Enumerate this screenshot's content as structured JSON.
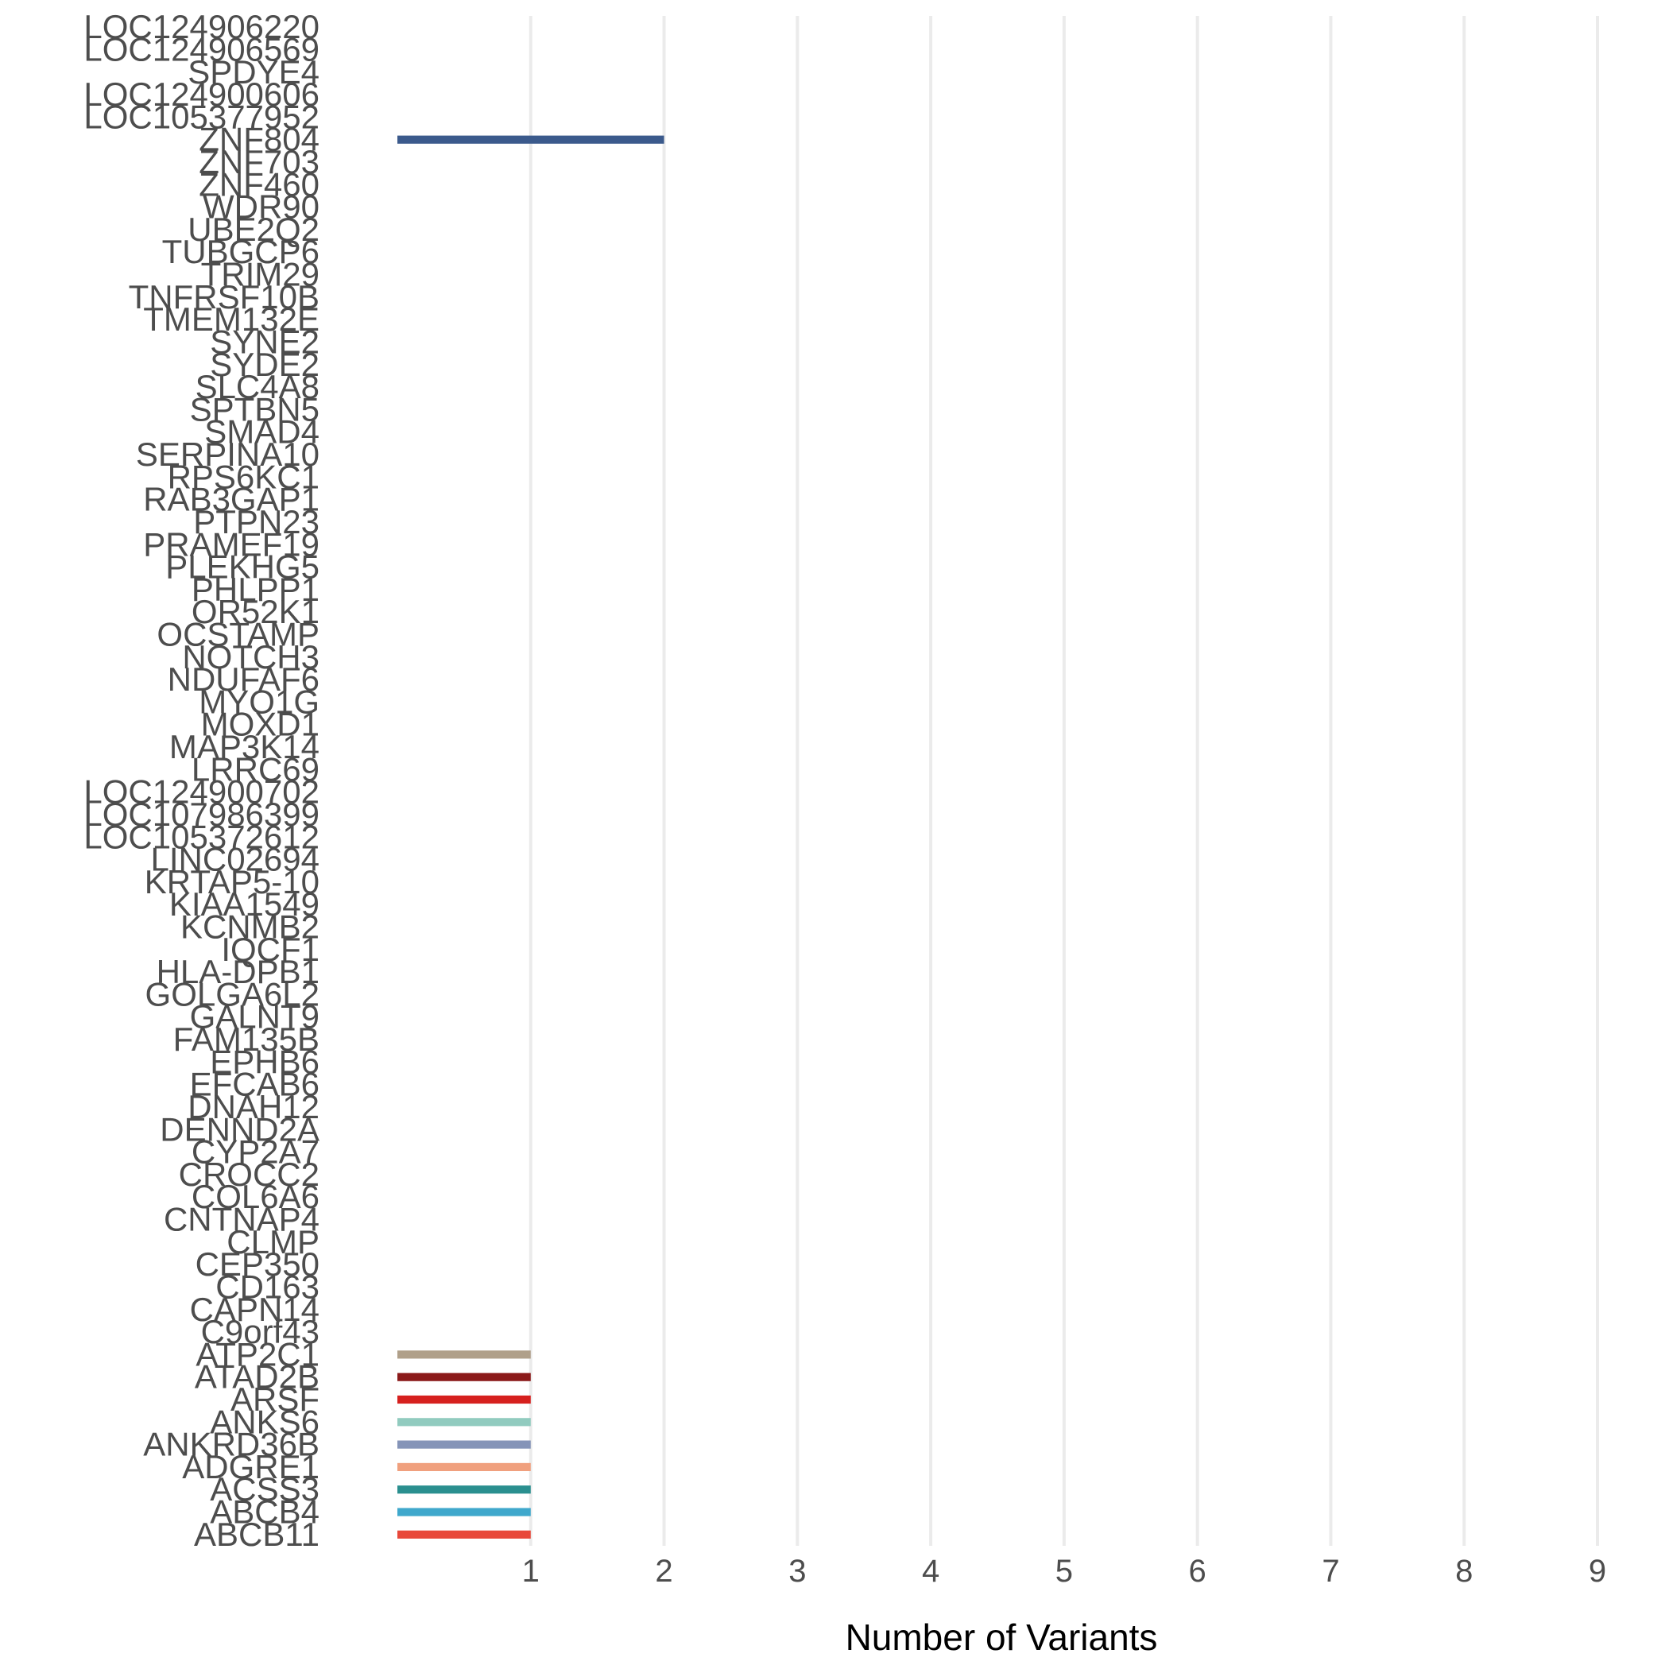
{
  "chart_data": {
    "type": "bar",
    "orientation": "horizontal",
    "xlabel": "Number of Variants",
    "ylabel": "",
    "xlim": [
      0,
      9
    ],
    "x_ticks": [
      "1",
      "2",
      "3",
      "4",
      "5",
      "6",
      "7",
      "8",
      "9"
    ],
    "grid": "vertical major lines",
    "legend": "none",
    "bars": [
      {
        "gene": "LOC124906220",
        "value": 0,
        "color": "#3b5a8c"
      },
      {
        "gene": "LOC124906569",
        "value": 0,
        "color": "#3b5a8c"
      },
      {
        "gene": "SPDYE4",
        "value": 0,
        "color": "#3b5a8c"
      },
      {
        "gene": "LOC124900606",
        "value": 0,
        "color": "#3b5a8c"
      },
      {
        "gene": "LOC105377952",
        "value": 0,
        "color": "#3b5a8c"
      },
      {
        "gene": "ZNF804",
        "value": 2,
        "color": "#3b5a8c"
      },
      {
        "gene": "ZNF703",
        "value": 0,
        "color": "#3b5a8c"
      },
      {
        "gene": "ZNF460",
        "value": 0,
        "color": "#3b5a8c"
      },
      {
        "gene": "WDR90",
        "value": 0,
        "color": "#3b5a8c"
      },
      {
        "gene": "UBE2Q2",
        "value": 0,
        "color": "#3b5a8c"
      },
      {
        "gene": "TUBGCP6",
        "value": 0,
        "color": "#3b5a8c"
      },
      {
        "gene": "TRIM29",
        "value": 0,
        "color": "#3b5a8c"
      },
      {
        "gene": "TNFRSF10B",
        "value": 0,
        "color": "#3b5a8c"
      },
      {
        "gene": "TMEM132E",
        "value": 0,
        "color": "#3b5a8c"
      },
      {
        "gene": "SYNE2",
        "value": 0,
        "color": "#3b5a8c"
      },
      {
        "gene": "SYDE2",
        "value": 0,
        "color": "#3b5a8c"
      },
      {
        "gene": "SLC4A8",
        "value": 0,
        "color": "#3b5a8c"
      },
      {
        "gene": "SPTBN5",
        "value": 0,
        "color": "#3b5a8c"
      },
      {
        "gene": "SMAD4",
        "value": 0,
        "color": "#3b5a8c"
      },
      {
        "gene": "SERPINA10",
        "value": 0,
        "color": "#3b5a8c"
      },
      {
        "gene": "RPS6KC1",
        "value": 0,
        "color": "#3b5a8c"
      },
      {
        "gene": "RAB3GAP1",
        "value": 0,
        "color": "#3b5a8c"
      },
      {
        "gene": "PTPN23",
        "value": 0,
        "color": "#3b5a8c"
      },
      {
        "gene": "PRAMEF19",
        "value": 0,
        "color": "#3b5a8c"
      },
      {
        "gene": "PLEKHG5",
        "value": 0,
        "color": "#3b5a8c"
      },
      {
        "gene": "PHLPP1",
        "value": 0,
        "color": "#3b5a8c"
      },
      {
        "gene": "OR52K1",
        "value": 0,
        "color": "#3b5a8c"
      },
      {
        "gene": "OCSTAMP",
        "value": 0,
        "color": "#3b5a8c"
      },
      {
        "gene": "NOTCH3",
        "value": 0,
        "color": "#3b5a8c"
      },
      {
        "gene": "NDUFAF6",
        "value": 0,
        "color": "#3b5a8c"
      },
      {
        "gene": "MYO1G",
        "value": 0,
        "color": "#3b5a8c"
      },
      {
        "gene": "MOXD1",
        "value": 0,
        "color": "#3b5a8c"
      },
      {
        "gene": "MAP3K14",
        "value": 0,
        "color": "#3b5a8c"
      },
      {
        "gene": "LRRC69",
        "value": 0,
        "color": "#3b5a8c"
      },
      {
        "gene": "LOC124900702",
        "value": 0,
        "color": "#3b5a8c"
      },
      {
        "gene": "LOC107986399",
        "value": 0,
        "color": "#3b5a8c"
      },
      {
        "gene": "LOC105372612",
        "value": 0,
        "color": "#3b5a8c"
      },
      {
        "gene": "LINC02694",
        "value": 0,
        "color": "#3b5a8c"
      },
      {
        "gene": "KRTAP5-10",
        "value": 0,
        "color": "#3b5a8c"
      },
      {
        "gene": "KIAA1549",
        "value": 0,
        "color": "#3b5a8c"
      },
      {
        "gene": "KCNMB2",
        "value": 0,
        "color": "#3b5a8c"
      },
      {
        "gene": "IQCF1",
        "value": 0,
        "color": "#3b5a8c"
      },
      {
        "gene": "HLA-DPB1",
        "value": 0,
        "color": "#3b5a8c"
      },
      {
        "gene": "GOLGA6L2",
        "value": 0,
        "color": "#3b5a8c"
      },
      {
        "gene": "GALNT9",
        "value": 0,
        "color": "#3b5a8c"
      },
      {
        "gene": "FAM135B",
        "value": 0,
        "color": "#3b5a8c"
      },
      {
        "gene": "EPHB6",
        "value": 0,
        "color": "#3b5a8c"
      },
      {
        "gene": "EFCAB6",
        "value": 0,
        "color": "#3b5a8c"
      },
      {
        "gene": "DNAH12",
        "value": 0,
        "color": "#3b5a8c"
      },
      {
        "gene": "DENND2A",
        "value": 0,
        "color": "#3b5a8c"
      },
      {
        "gene": "CYP2A7",
        "value": 0,
        "color": "#3b5a8c"
      },
      {
        "gene": "CROCC2",
        "value": 0,
        "color": "#3b5a8c"
      },
      {
        "gene": "COL6A6",
        "value": 0,
        "color": "#3b5a8c"
      },
      {
        "gene": "CNTNAP4",
        "value": 0,
        "color": "#3b5a8c"
      },
      {
        "gene": "CLMP",
        "value": 0,
        "color": "#3b5a8c"
      },
      {
        "gene": "CEP350",
        "value": 0,
        "color": "#3b5a8c"
      },
      {
        "gene": "CD163",
        "value": 0,
        "color": "#3b5a8c"
      },
      {
        "gene": "CAPN14",
        "value": 0,
        "color": "#3b5a8c"
      },
      {
        "gene": "C9orf43",
        "value": 0,
        "color": "#3b5a8c"
      },
      {
        "gene": "ATP2C1",
        "value": 1,
        "color": "#b0a08a"
      },
      {
        "gene": "ATAD2B",
        "value": 1,
        "color": "#8b1a1a"
      },
      {
        "gene": "ARSF",
        "value": 1,
        "color": "#d6201e"
      },
      {
        "gene": "ANKS6",
        "value": 1,
        "color": "#91cbbf"
      },
      {
        "gene": "ANKRD36B",
        "value": 1,
        "color": "#8594b8"
      },
      {
        "gene": "ADGRE1",
        "value": 1,
        "color": "#f0a07e"
      },
      {
        "gene": "ACSS3",
        "value": 1,
        "color": "#2a8f8f"
      },
      {
        "gene": "ABCB4",
        "value": 1,
        "color": "#3fa8cc"
      },
      {
        "gene": "ABCB11",
        "value": 1,
        "color": "#e8483a"
      }
    ]
  }
}
